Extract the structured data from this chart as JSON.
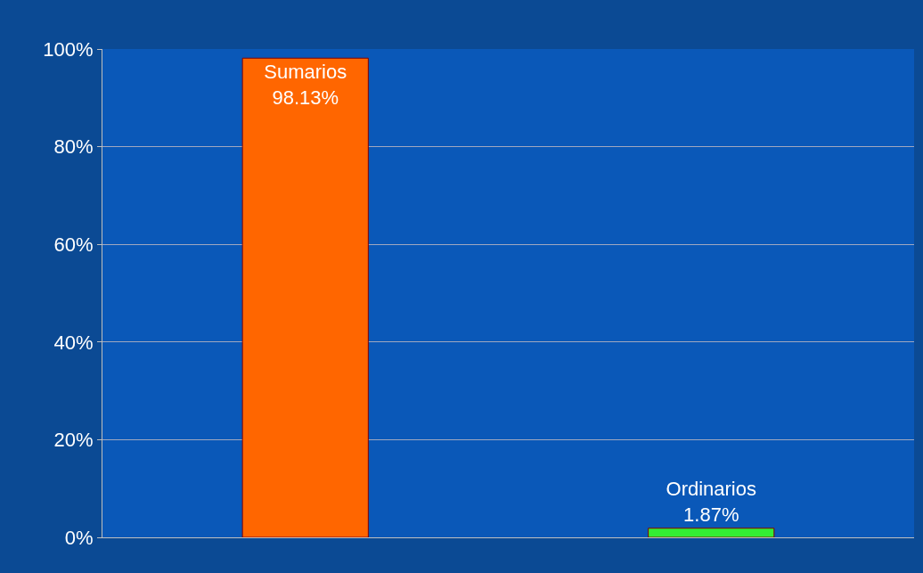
{
  "chart_data": {
    "type": "bar",
    "categories": [
      "Sumarios",
      "Ordinarios"
    ],
    "values": [
      98.13,
      1.87
    ],
    "value_labels": [
      "98.13%",
      "1.87%"
    ],
    "colors": [
      "#ff6600",
      "#33ee33"
    ],
    "ylim": [
      0,
      100
    ],
    "yticks": [
      {
        "value": 0,
        "label": "0%"
      },
      {
        "value": 20,
        "label": "20%"
      },
      {
        "value": 40,
        "label": "40%"
      },
      {
        "value": 60,
        "label": "60%"
      },
      {
        "value": 80,
        "label": "80%"
      },
      {
        "value": 100,
        "label": "100%"
      }
    ],
    "grid": "y",
    "legend": false,
    "tick_labels": "y"
  }
}
